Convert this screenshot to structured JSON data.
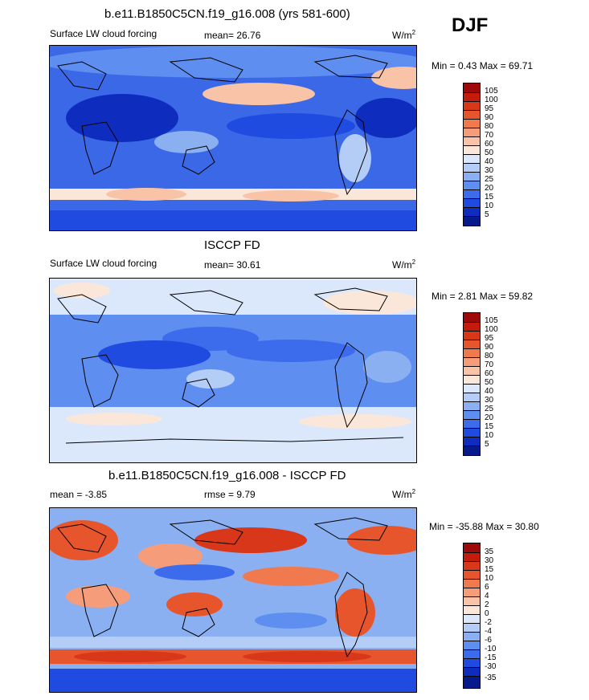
{
  "season_label": "DJF",
  "panels": [
    {
      "title": "b.e11.B1850C5CN.f19_g16.008 (yrs 581-600)",
      "left_label": "Surface LW cloud forcing",
      "center_label": "mean=  26.76",
      "units": "W/m",
      "units_sup": "2",
      "minmax": "Min =   0.43 Max =  69.71"
    },
    {
      "title": "ISCCP FD",
      "left_label": "Surface LW cloud forcing",
      "center_label": "mean=  30.61",
      "units": "W/m",
      "units_sup": "2",
      "minmax": "Min =   2.81 Max =  59.82"
    },
    {
      "title": "b.e11.B1850C5CN.f19_g16.008 - ISCCP FD",
      "left_label": "mean =  -3.85",
      "center_label": "rmse =   9.79",
      "units": "W/m",
      "units_sup": "2",
      "minmax": "Min = -35.88 Max =  30.80"
    }
  ],
  "chart_data": [
    {
      "type": "heatmap",
      "title": "b.e11.B1850C5CN.f19_g16.008 (yrs 581-600)",
      "variable": "Surface LW cloud forcing",
      "mean": 26.76,
      "min": 0.43,
      "max": 69.71,
      "units": "W/m2",
      "colorbar": {
        "levels": [
          "105",
          "100",
          "95",
          "90",
          "80",
          "70",
          "60",
          "50",
          "40",
          "30",
          "25",
          "20",
          "15",
          "10",
          "5"
        ],
        "colors": [
          "#9e0a0a",
          "#c41c0c",
          "#d9371a",
          "#e6552c",
          "#f07a4e",
          "#f59d7a",
          "#f8c3a6",
          "#fbe7da",
          "#dbe8fb",
          "#b3cdf7",
          "#8ab0f2",
          "#5e8ef0",
          "#3c6cec",
          "#1f4be0",
          "#0e2dbf",
          "#071a8c"
        ]
      }
    },
    {
      "type": "heatmap",
      "title": "ISCCP FD",
      "variable": "Surface LW cloud forcing",
      "mean": 30.61,
      "min": 2.81,
      "max": 59.82,
      "units": "W/m2",
      "colorbar": {
        "levels": [
          "105",
          "100",
          "95",
          "90",
          "80",
          "70",
          "60",
          "50",
          "40",
          "30",
          "25",
          "20",
          "15",
          "10",
          "5"
        ],
        "colors": [
          "#9e0a0a",
          "#c41c0c",
          "#d9371a",
          "#e6552c",
          "#f07a4e",
          "#f59d7a",
          "#f8c3a6",
          "#fbe7da",
          "#dbe8fb",
          "#b3cdf7",
          "#8ab0f2",
          "#5e8ef0",
          "#3c6cec",
          "#1f4be0",
          "#0e2dbf",
          "#071a8c"
        ]
      }
    },
    {
      "type": "heatmap",
      "title": "b.e11.B1850C5CN.f19_g16.008 - ISCCP FD",
      "mean": -3.85,
      "rmse": 9.79,
      "min": -35.88,
      "max": 30.8,
      "units": "W/m2",
      "colorbar": {
        "levels": [
          "35",
          "30",
          "15",
          "10",
          "6",
          "4",
          "2",
          "0",
          "-2",
          "-4",
          "-6",
          "-10",
          "-15",
          "-30",
          "-35"
        ],
        "colors": [
          "#9e0a0a",
          "#c41c0c",
          "#d9371a",
          "#e6552c",
          "#f07a4e",
          "#f59d7a",
          "#f8c3a6",
          "#fbe7da",
          "#dbe8fb",
          "#b3cdf7",
          "#8ab0f2",
          "#5e8ef0",
          "#3c6cec",
          "#1f4be0",
          "#0e2dbf",
          "#071a8c"
        ]
      }
    }
  ]
}
